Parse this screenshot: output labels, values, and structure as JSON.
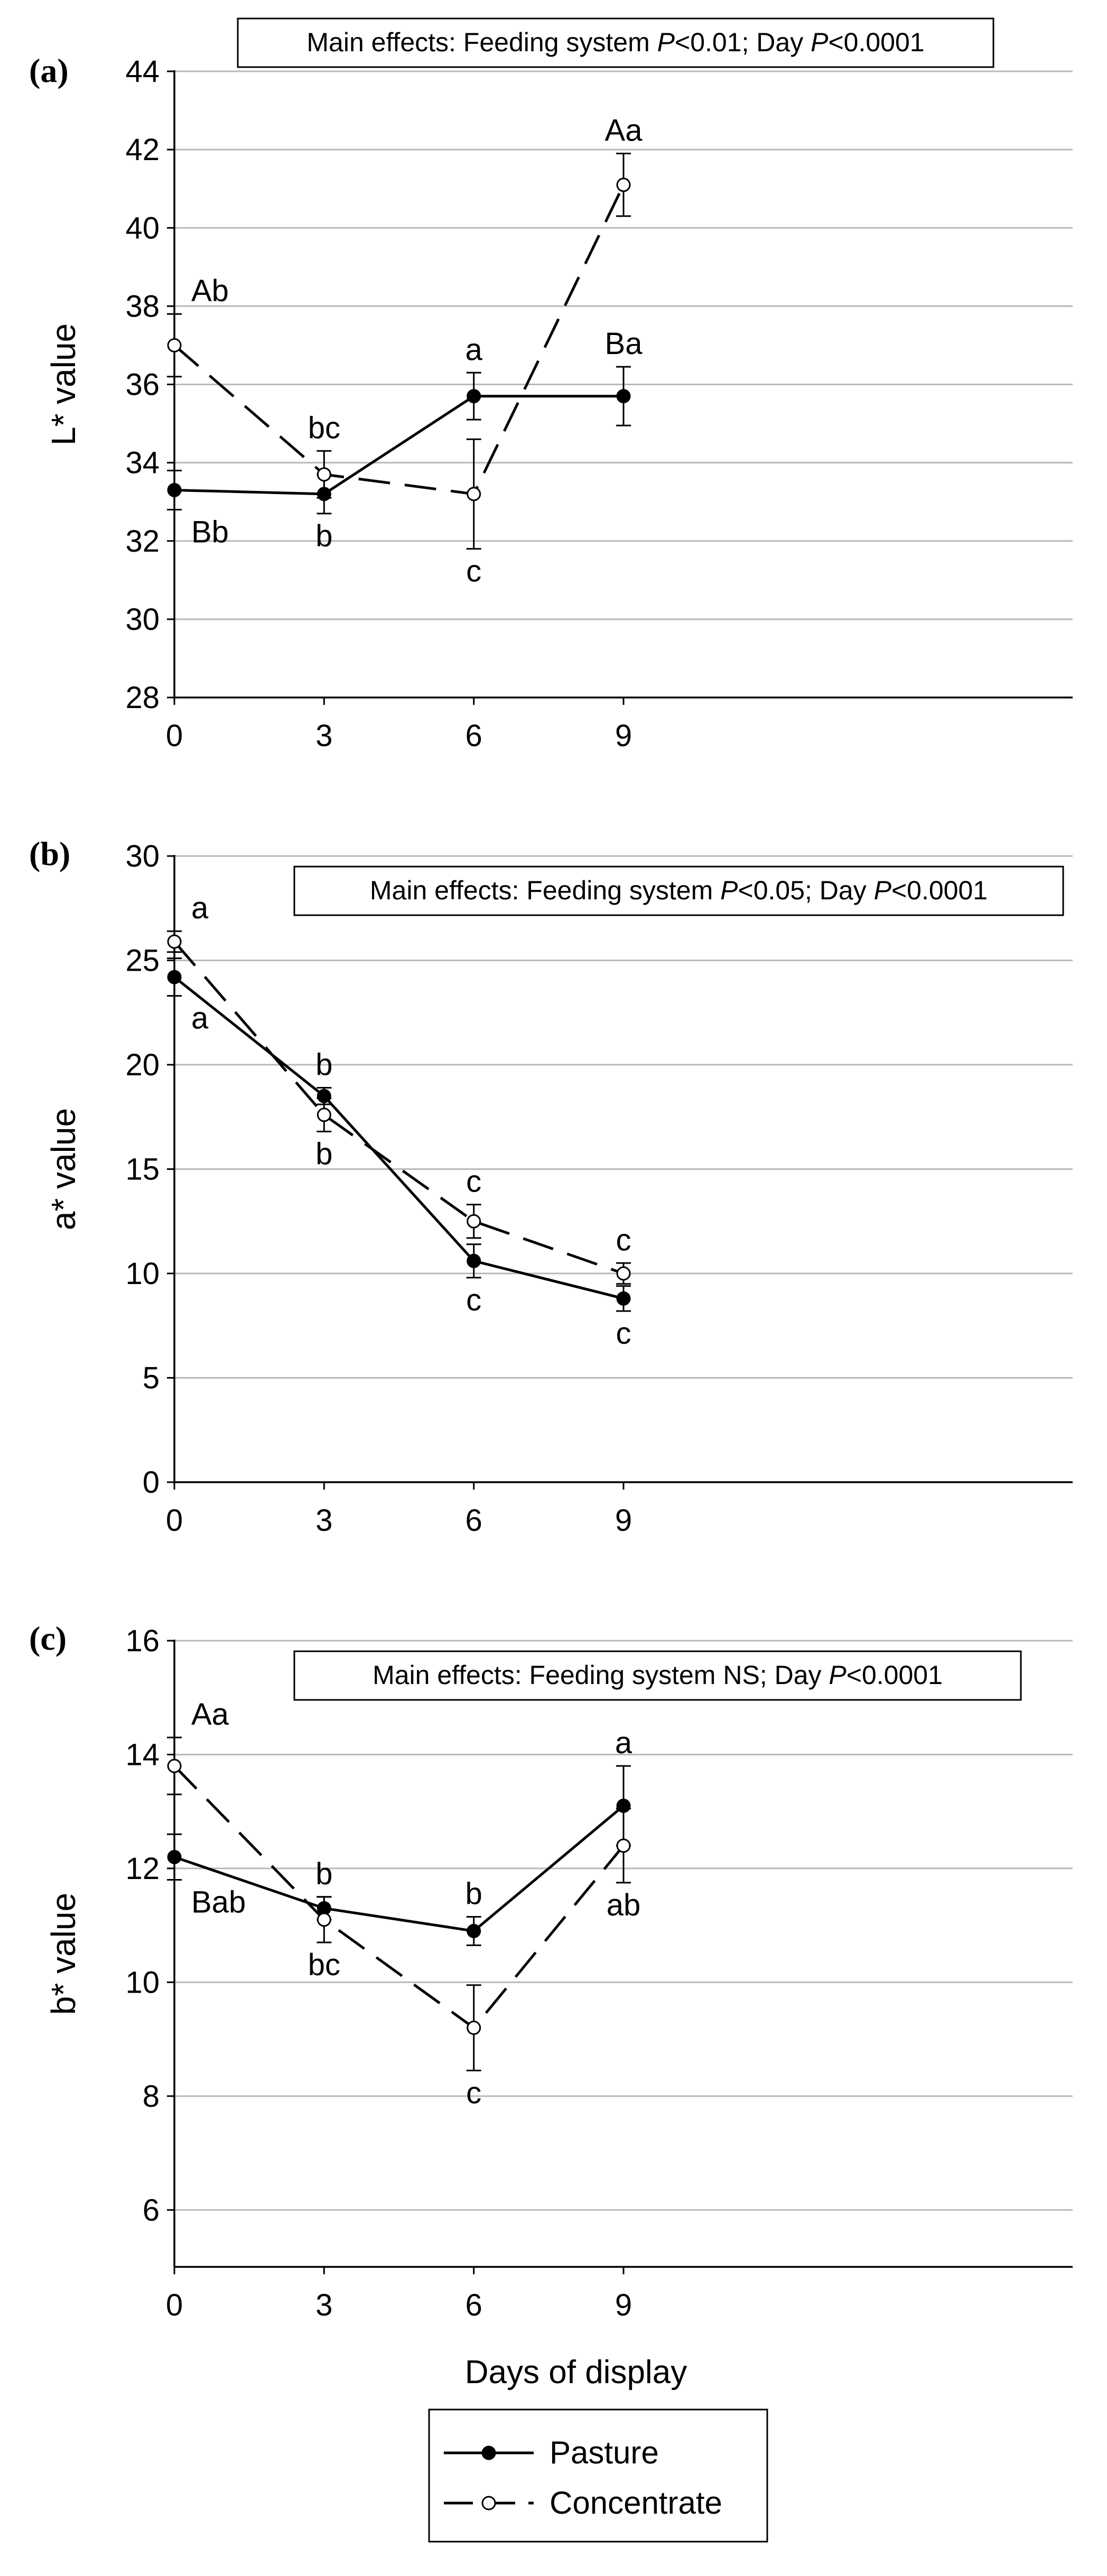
{
  "chart_data": [
    {
      "type": "line",
      "panel_label": "(a)",
      "ylabel": "L* value",
      "xlabel": "",
      "x": [
        0,
        3,
        6,
        9
      ],
      "xlim": [
        0,
        18
      ],
      "ylim": [
        28,
        44
      ],
      "yticks": [
        28,
        30,
        32,
        34,
        36,
        38,
        40,
        42,
        44
      ],
      "xticks": [
        0,
        3,
        6,
        9
      ],
      "annotation": {
        "prefix": "Main effects: Feeding system ",
        "p1": "P",
        "v1": "<0.01; Day ",
        "p2": "P",
        "v2": "<0.0001"
      },
      "series": [
        {
          "name": "Pasture",
          "values": [
            33.3,
            33.2,
            35.7,
            35.7
          ],
          "err": [
            0.5,
            0.5,
            0.6,
            0.75
          ],
          "letters": [
            "Bb",
            "b",
            "a",
            "Ba"
          ],
          "letter_pos": [
            "below",
            "below",
            "above",
            "above"
          ]
        },
        {
          "name": "Concentrate",
          "values": [
            37.0,
            33.7,
            33.2,
            41.1
          ],
          "err": [
            0.8,
            0.6,
            1.4,
            0.8
          ],
          "letters": [
            "Ab",
            "bc",
            "c",
            "Aa"
          ],
          "letter_pos": [
            "above",
            "above",
            "below",
            "above"
          ]
        }
      ]
    },
    {
      "type": "line",
      "panel_label": "(b)",
      "ylabel": "a* value",
      "xlabel": "",
      "x": [
        0,
        3,
        6,
        9
      ],
      "xlim": [
        0,
        18
      ],
      "ylim": [
        0,
        30
      ],
      "yticks": [
        0,
        5,
        10,
        15,
        20,
        25,
        30
      ],
      "xticks": [
        0,
        3,
        6,
        9
      ],
      "annotation": {
        "prefix": "Main effects: Feeding system ",
        "p1": "P",
        "v1": "<0.05; Day ",
        "p2": "P",
        "v2": "<0.0001"
      },
      "series": [
        {
          "name": "Pasture",
          "values": [
            24.2,
            18.5,
            10.6,
            8.8
          ],
          "err": [
            0.9,
            0.4,
            0.8,
            0.6
          ],
          "letters": [
            "a",
            "b",
            "c",
            "c"
          ],
          "letter_pos": [
            "below",
            "above",
            "below",
            "below"
          ]
        },
        {
          "name": "Concentrate",
          "values": [
            25.9,
            17.6,
            12.5,
            10.0
          ],
          "err": [
            0.5,
            0.8,
            0.8,
            0.5
          ],
          "letters": [
            "a",
            "b",
            "c",
            "c"
          ],
          "letter_pos": [
            "above",
            "below",
            "above",
            "above"
          ]
        }
      ]
    },
    {
      "type": "line",
      "panel_label": "(c)",
      "ylabel": "b* value",
      "xlabel": "Days of display",
      "x": [
        0,
        3,
        6,
        9
      ],
      "xlim": [
        0,
        18
      ],
      "ylim": [
        5,
        16
      ],
      "yticks": [
        6,
        8,
        10,
        12,
        14,
        16
      ],
      "xticks": [
        0,
        3,
        6,
        9
      ],
      "annotation": {
        "prefix": "Main effects: Feeding system NS; Day ",
        "p1": "",
        "v1": "",
        "p2": "P",
        "v2": "<0.0001"
      },
      "series": [
        {
          "name": "Pasture",
          "values": [
            12.2,
            11.3,
            10.9,
            13.1
          ],
          "err": [
            0.4,
            0.2,
            0.25,
            0.7
          ],
          "letters": [
            "Bab",
            "b",
            "b",
            "a"
          ],
          "letter_pos": [
            "below",
            "above",
            "above",
            "above"
          ]
        },
        {
          "name": "Concentrate",
          "values": [
            13.8,
            11.1,
            9.2,
            12.4
          ],
          "err": [
            0.5,
            0.4,
            0.75,
            0.65
          ],
          "letters": [
            "Aa",
            "bc",
            "c",
            "ab"
          ],
          "letter_pos": [
            "above",
            "below",
            "below",
            "below"
          ]
        }
      ]
    }
  ],
  "legend": {
    "items": [
      {
        "name": "Pasture",
        "label": "Pasture"
      },
      {
        "name": "Concentrate",
        "label": "Concentrate"
      }
    ]
  },
  "colors": {
    "pasture_marker": "#000000",
    "concentrate_marker": "#ffffff",
    "grid": "#b9b9b9",
    "line": "#000000"
  }
}
